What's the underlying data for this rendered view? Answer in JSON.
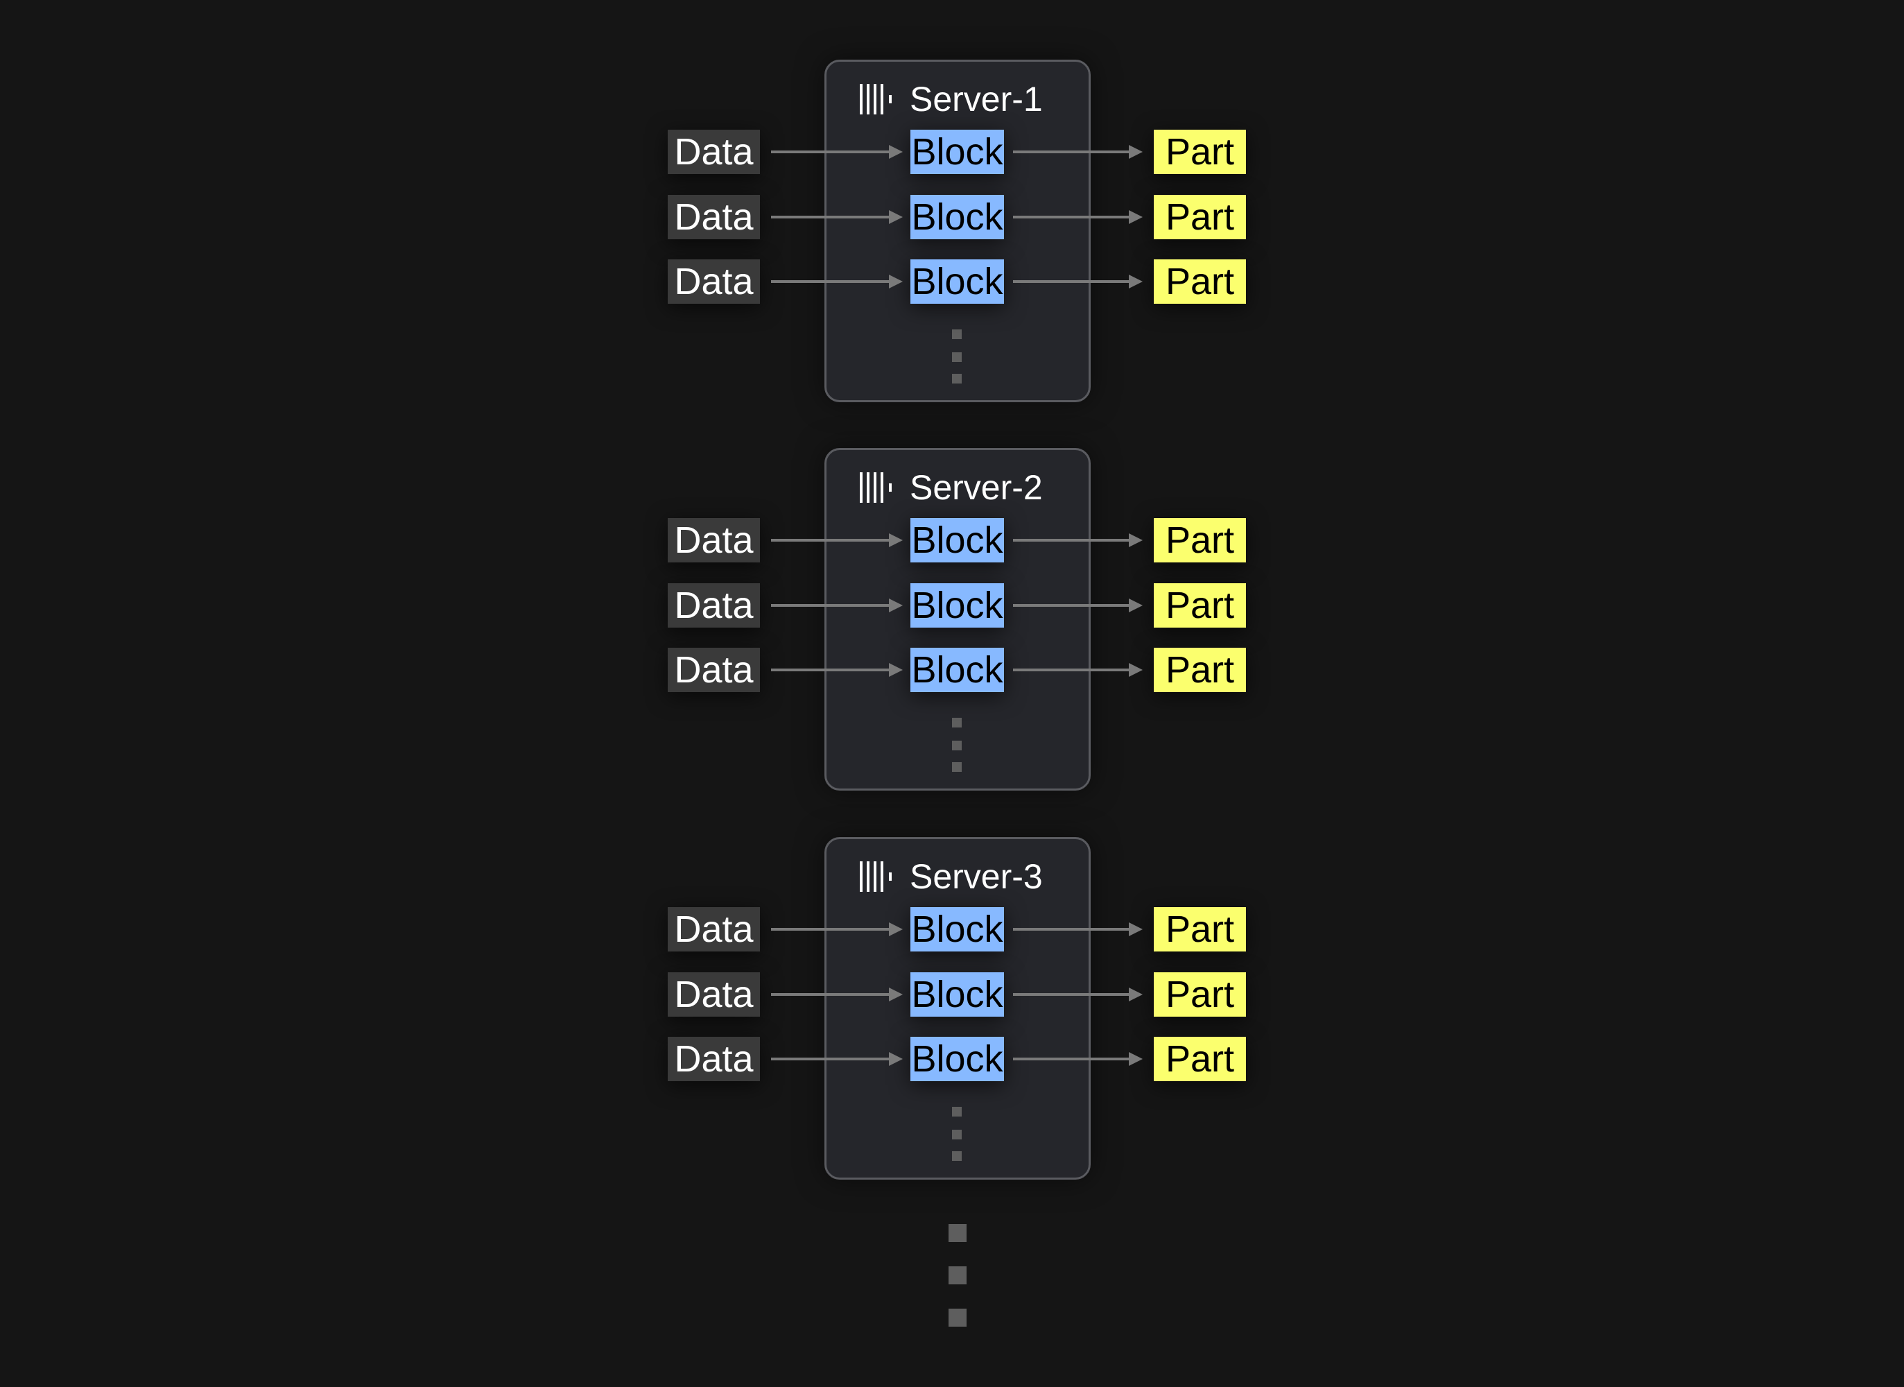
{
  "diagram": {
    "servers": [
      {
        "name": "Server-1",
        "rows": [
          {
            "input": "Data",
            "block": "Block",
            "output": "Part"
          },
          {
            "input": "Data",
            "block": "Block",
            "output": "Part"
          },
          {
            "input": "Data",
            "block": "Block",
            "output": "Part"
          }
        ]
      },
      {
        "name": "Server-2",
        "rows": [
          {
            "input": "Data",
            "block": "Block",
            "output": "Part"
          },
          {
            "input": "Data",
            "block": "Block",
            "output": "Part"
          },
          {
            "input": "Data",
            "block": "Block",
            "output": "Part"
          }
        ]
      },
      {
        "name": "Server-3",
        "rows": [
          {
            "input": "Data",
            "block": "Block",
            "output": "Part"
          },
          {
            "input": "Data",
            "block": "Block",
            "output": "Part"
          },
          {
            "input": "Data",
            "block": "Block",
            "output": "Part"
          }
        ]
      }
    ],
    "server_icon": "server-rack-icon",
    "continuation": "ellipsis-vertical-dots",
    "colors": {
      "background": "#151515",
      "server_box": "#25262b",
      "data": "#3a3a3a",
      "block": "#87b9ff",
      "part": "#fbff6e",
      "arrow": "#7a7a7a"
    }
  }
}
